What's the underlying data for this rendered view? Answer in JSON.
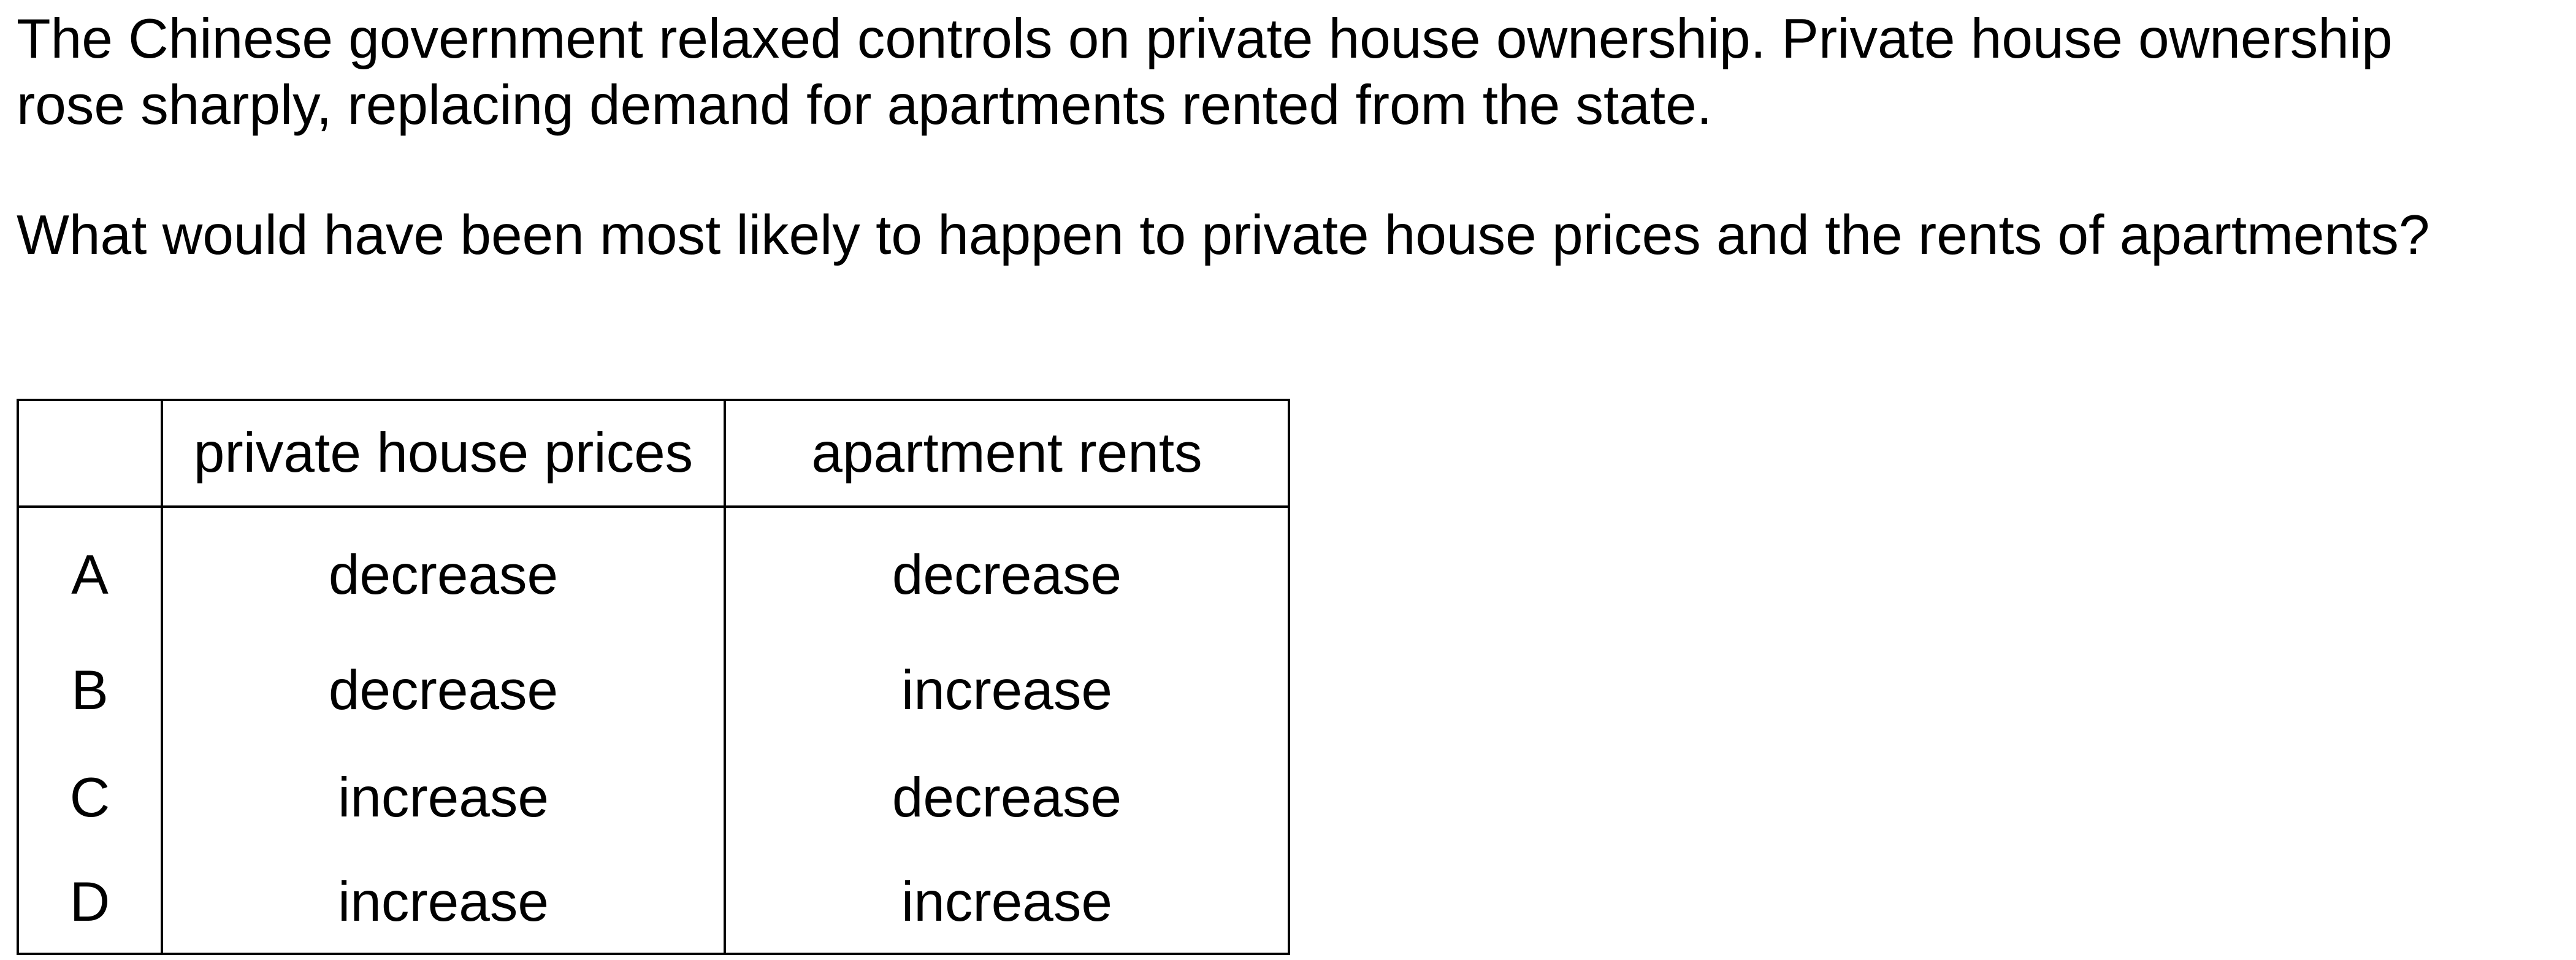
{
  "question": {
    "intro": "The Chinese government relaxed controls on private house ownership. Private house ownership rose sharply, replacing demand for apartments rented from the state.",
    "stem": "What would have been most likely to happen to private house prices and the rents of apartments?"
  },
  "table": {
    "headers": [
      "",
      "private house prices",
      "apartment rents"
    ],
    "rows": [
      {
        "letter": "A",
        "house": "decrease",
        "rent": "decrease"
      },
      {
        "letter": "B",
        "house": "decrease",
        "rent": "increase"
      },
      {
        "letter": "C",
        "house": "increase",
        "rent": "decrease"
      },
      {
        "letter": "D",
        "house": "increase",
        "rent": "increase"
      }
    ]
  }
}
